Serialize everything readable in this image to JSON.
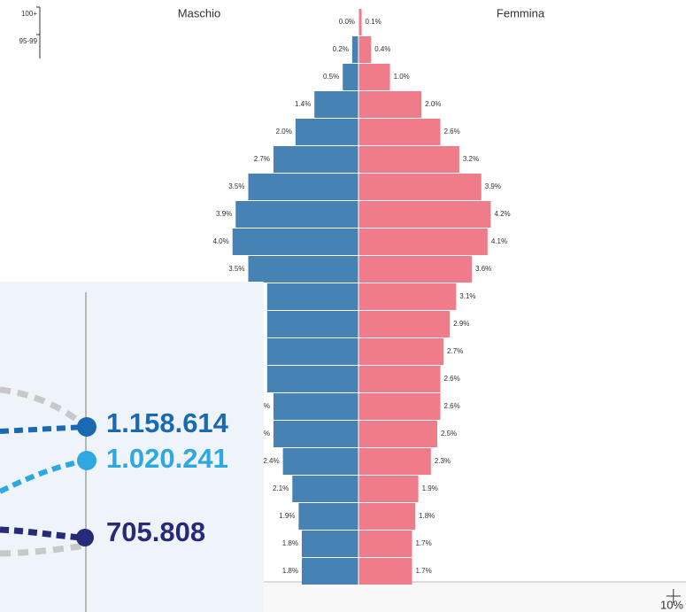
{
  "chart_data": {
    "type": "pyramid",
    "categories": [
      "100+",
      "95-99",
      null,
      null,
      null,
      null,
      null,
      null,
      null,
      null,
      null,
      null,
      null,
      null,
      null,
      null,
      null,
      null,
      null,
      null,
      null
    ],
    "series": [
      {
        "name": "Maschio",
        "color": "#4682b4",
        "values": [
          0.0,
          0.2,
          0.5,
          1.4,
          2.0,
          2.7,
          3.5,
          3.9,
          4.0,
          3.5,
          2.9,
          2.9,
          2.9,
          2.9,
          2.7,
          2.7,
          2.4,
          2.1,
          1.9,
          1.8,
          1.8
        ],
        "value_labels": [
          "0.0%",
          "0.2%",
          "0.5%",
          "1.4%",
          "2.0%",
          "2.7%",
          "3.5%",
          "3.9%",
          "4.0%",
          "3.5%",
          "2.9%",
          "2.9%",
          "2.9%",
          "2.9%",
          "2.7%",
          "2.7%",
          "2.4%",
          "2.1%",
          "1.9%",
          "1.8%",
          "1.8%"
        ]
      },
      {
        "name": "Femmina",
        "color": "#f07c8a",
        "values": [
          0.1,
          0.4,
          1.0,
          2.0,
          2.6,
          3.2,
          3.9,
          4.2,
          4.1,
          3.6,
          3.1,
          2.9,
          2.7,
          2.6,
          2.6,
          2.5,
          2.3,
          1.9,
          1.8,
          1.7,
          1.7
        ],
        "value_labels": [
          "0.1%",
          "0.4%",
          "1.0%",
          "2.0%",
          "2.6%",
          "3.2%",
          "3.9%",
          "4.2%",
          "4.1%",
          "3.6%",
          "3.1%",
          "2.9%",
          "2.7%",
          "2.6%",
          "2.6%",
          "2.5%",
          "2.3%",
          "1.9%",
          "1.8%",
          "1.7%",
          "1.7%"
        ]
      }
    ],
    "xlim": [
      0,
      10.4
    ],
    "xticks": [
      {
        "value": 10,
        "label": "10%"
      }
    ]
  },
  "overlay": {
    "labels": [
      "1.158.614",
      "1.020.241",
      "705.808"
    ]
  }
}
